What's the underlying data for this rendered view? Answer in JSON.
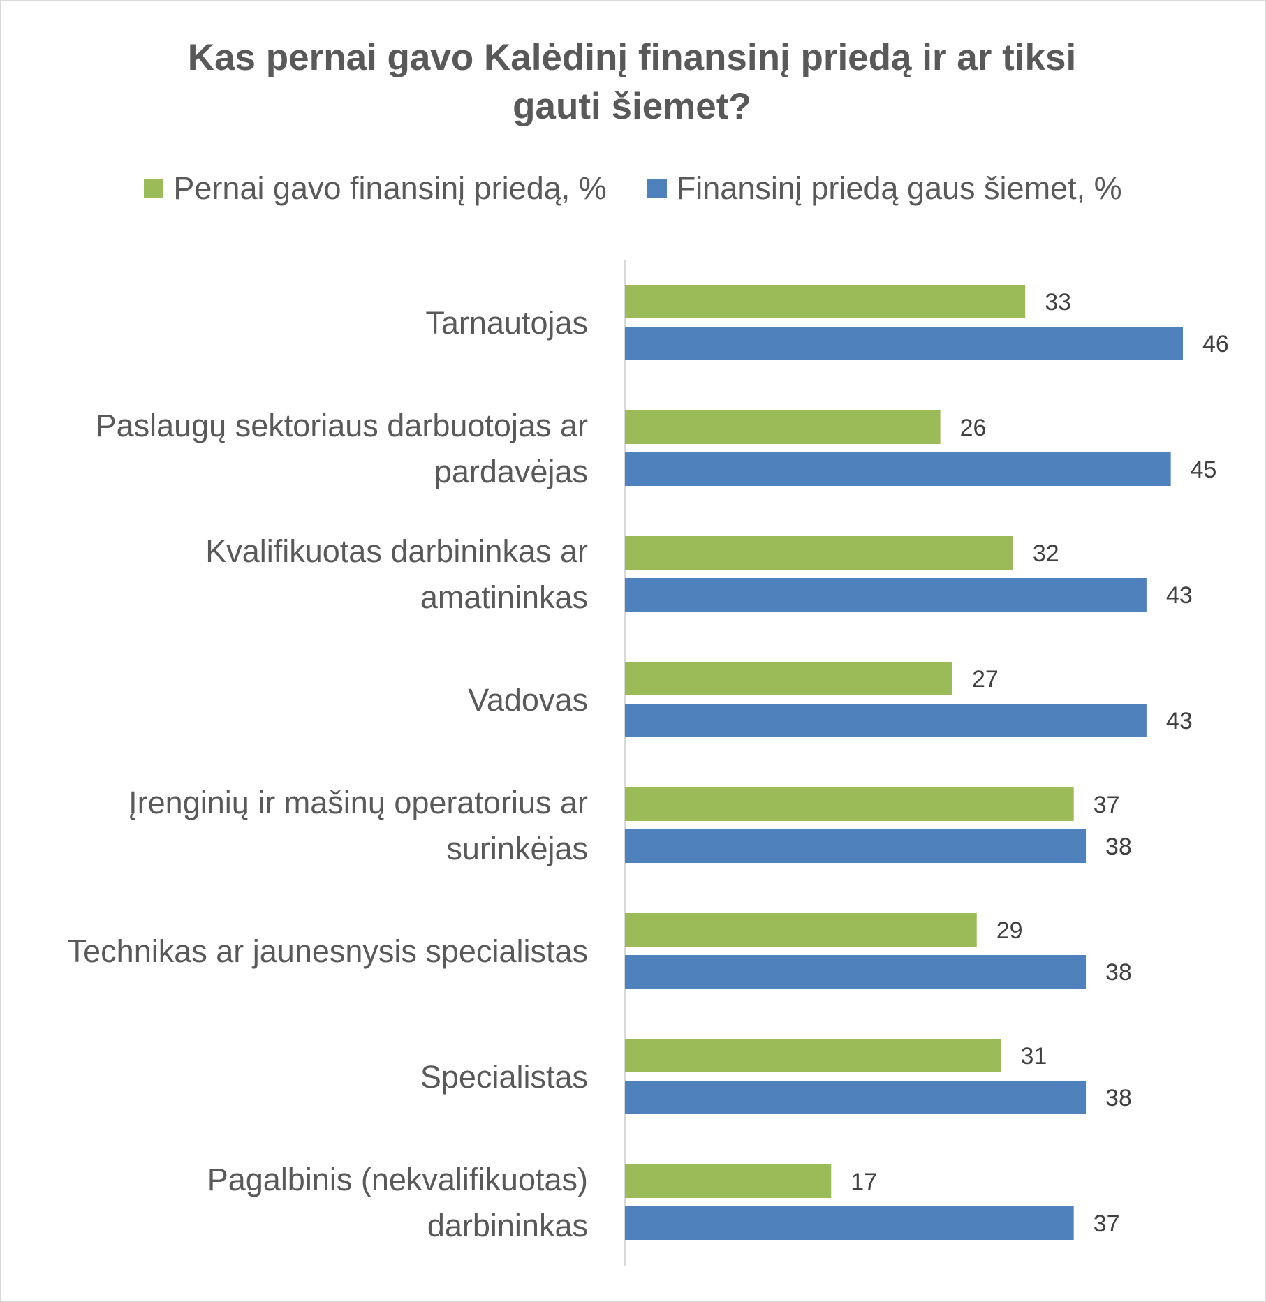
{
  "chart_data": {
    "type": "bar",
    "orientation": "horizontal",
    "title": "Kas pernai gavo Kalėdinį finansinį priedą ir ar tiksi gauti šiemet?",
    "title_lines": [
      "Kas pernai gavo Kalėdinį finansinį priedą ir ar tiksi",
      "gauti šiemet?"
    ],
    "categories": [
      "Tarnautojas",
      "Paslaugų sektoriaus darbuotojas ar pardavėjas",
      "Kvalifikuotas darbininkas ar amatininkas",
      "Vadovas",
      "Įrenginių ir mašinų operatorius ar surinkėjas",
      "Technikas ar jaunesnysis specialistas",
      "Specialistas",
      "Pagalbinis (nekvalifikuotas) darbininkas"
    ],
    "category_lines": [
      [
        "Tarnautojas"
      ],
      [
        "Paslaugų sektoriaus darbuotojas ar",
        "pardavėjas"
      ],
      [
        "Kvalifikuotas darbininkas ar",
        "amatininkas"
      ],
      [
        "Vadovas"
      ],
      [
        "Įrenginių ir mašinų operatorius ar",
        "surinkėjas"
      ],
      [
        "Technikas ar jaunesnysis specialistas"
      ],
      [
        "Specialistas"
      ],
      [
        "Pagalbinis (nekvalifikuotas)",
        "darbininkas"
      ]
    ],
    "series": [
      {
        "name": "Pernai gavo finansinį priedą, %",
        "color": "#9bbb59",
        "values": [
          33,
          26,
          32,
          27,
          37,
          29,
          31,
          17
        ]
      },
      {
        "name": "Finansinį priedą gaus šiemet, %",
        "color": "#4f81bd",
        "values": [
          46,
          45,
          43,
          43,
          38,
          38,
          38,
          37
        ]
      }
    ],
    "xlim": [
      0,
      50
    ],
    "legend_position": "top",
    "grid": false,
    "data_labels": true
  }
}
